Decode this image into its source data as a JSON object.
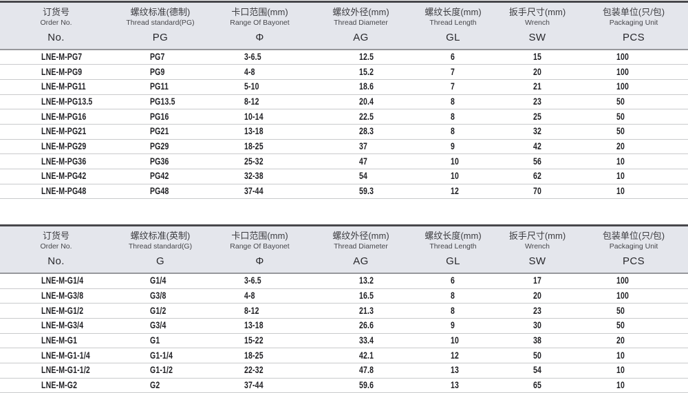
{
  "colors": {
    "header_background": "#e4e6ec",
    "header_top_border": "#47474b",
    "header_bottom_border": "#97989c",
    "row_divider": "#c9cacc",
    "data_text": "#1f1f23",
    "header_text": "#3c3c40"
  },
  "tables": [
    {
      "id": "pg-metric-thread-table",
      "columns": [
        {
          "zh": "订货号",
          "en": "Order No.",
          "code": "No."
        },
        {
          "zh": "螺纹标准(德制)",
          "en": "Thread standard(PG)",
          "code": "PG"
        },
        {
          "zh": "卡口范围(mm)",
          "en": "Range Of Bayonet",
          "code": "Φ"
        },
        {
          "zh": "螺纹外径(mm)",
          "en": "Thread Diameter",
          "code": "AG"
        },
        {
          "zh": "螺纹长度(mm)",
          "en": "Thread Length",
          "code": "GL"
        },
        {
          "zh": "扳手尺寸(mm)",
          "en": "Wrench",
          "code": "SW"
        },
        {
          "zh": "包装单位(只/包)",
          "en": "Packaging Unit",
          "code": "PCS"
        }
      ],
      "rows": [
        [
          "LNE-M-PG7",
          "PG7",
          "3-6.5",
          "12.5",
          "6",
          "15",
          "100"
        ],
        [
          "LNE-M-PG9",
          "PG9",
          "4-8",
          "15.2",
          "7",
          "20",
          "100"
        ],
        [
          "LNE-M-PG11",
          "PG11",
          "5-10",
          "18.6",
          "7",
          "21",
          "100"
        ],
        [
          "LNE-M-PG13.5",
          "PG13.5",
          "8-12",
          "20.4",
          "8",
          "23",
          "50"
        ],
        [
          "LNE-M-PG16",
          "PG16",
          "10-14",
          "22.5",
          "8",
          "25",
          "50"
        ],
        [
          "LNE-M-PG21",
          "PG21",
          "13-18",
          "28.3",
          "8",
          "32",
          "50"
        ],
        [
          "LNE-M-PG29",
          "PG29",
          "18-25",
          "37",
          "9",
          "42",
          "20"
        ],
        [
          "LNE-M-PG36",
          "PG36",
          "25-32",
          "47",
          "10",
          "56",
          "10"
        ],
        [
          "LNE-M-PG42",
          "PG42",
          "32-38",
          "54",
          "10",
          "62",
          "10"
        ],
        [
          "LNE-M-PG48",
          "PG48",
          "37-44",
          "59.3",
          "12",
          "70",
          "10"
        ]
      ]
    },
    {
      "id": "g-thread-table",
      "columns": [
        {
          "zh": "订货号",
          "en": "Order No.",
          "code": "No."
        },
        {
          "zh": "螺纹标准(英制)",
          "en": "Thread standard(G)",
          "code": "G"
        },
        {
          "zh": "卡口范围(mm)",
          "en": "Range Of Bayonet",
          "code": "Φ"
        },
        {
          "zh": "螺纹外径(mm)",
          "en": "Thread Diameter",
          "code": "AG"
        },
        {
          "zh": "螺纹长度(mm)",
          "en": "Thread Length",
          "code": "GL"
        },
        {
          "zh": "扳手尺寸(mm)",
          "en": "Wrench",
          "code": "SW"
        },
        {
          "zh": "包装单位(只/包)",
          "en": "Packaging Unit",
          "code": "PCS"
        }
      ],
      "rows": [
        [
          "LNE-M-G1/4",
          "G1/4",
          "3-6.5",
          "13.2",
          "6",
          "17",
          "100"
        ],
        [
          "LNE-M-G3/8",
          "G3/8",
          "4-8",
          "16.5",
          "8",
          "20",
          "100"
        ],
        [
          "LNE-M-G1/2",
          "G1/2",
          "8-12",
          "21.3",
          "8",
          "23",
          "50"
        ],
        [
          "LNE-M-G3/4",
          "G3/4",
          "13-18",
          "26.6",
          "9",
          "30",
          "50"
        ],
        [
          "LNE-M-G1",
          "G1",
          "15-22",
          "33.4",
          "10",
          "38",
          "20"
        ],
        [
          "LNE-M-G1-1/4",
          "G1-1/4",
          "18-25",
          "42.1",
          "12",
          "50",
          "10"
        ],
        [
          "LNE-M-G1-1/2",
          "G1-1/2",
          "22-32",
          "47.8",
          "13",
          "54",
          "10"
        ],
        [
          "LNE-M-G2",
          "G2",
          "37-44",
          "59.6",
          "13",
          "65",
          "10"
        ]
      ]
    }
  ]
}
